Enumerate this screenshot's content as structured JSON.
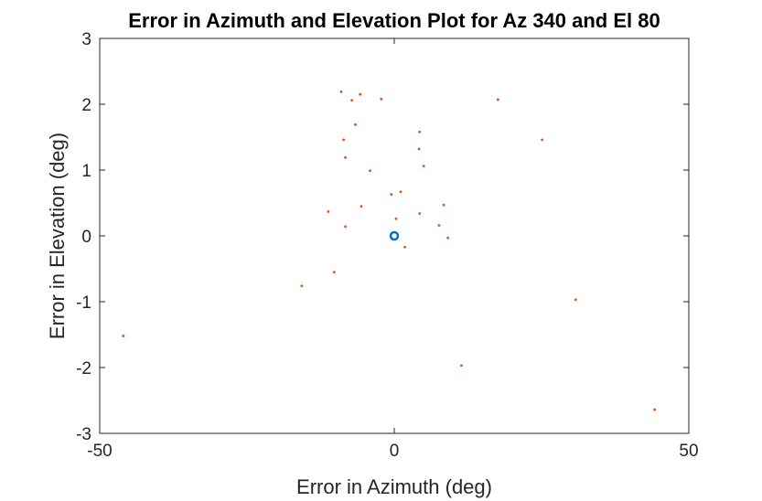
{
  "chart_data": {
    "type": "scatter",
    "title": "Error in Azimuth and Elevation Plot for Az 340 and El 80",
    "xlabel": "Error in Azimuth (deg)",
    "ylabel": "Error in Elevation (deg)",
    "xlim": [
      -50,
      50
    ],
    "ylim": [
      -3,
      3
    ],
    "xticks": [
      -50,
      0,
      50
    ],
    "xtick_labels": [
      "-50",
      "0",
      "50"
    ],
    "yticks": [
      -3,
      -2,
      -1,
      0,
      1,
      2,
      3
    ],
    "ytick_labels": [
      "-3",
      "-2",
      "-1",
      "0",
      "1",
      "2",
      "3"
    ],
    "grid": false,
    "box": true,
    "series": [
      {
        "marker": "circle-open",
        "color": "#0072BD",
        "points": [
          [
            0,
            0
          ]
        ]
      },
      {
        "marker": "dot",
        "color": "#D95319",
        "points": [
          [
            -9.0,
            2.19
          ],
          [
            -5.8,
            2.15
          ],
          [
            -7.2,
            2.06
          ],
          [
            -2.2,
            2.08
          ],
          [
            17.6,
            2.07
          ],
          [
            -6.6,
            1.69
          ],
          [
            4.3,
            1.58
          ],
          [
            -8.6,
            1.46
          ],
          [
            25.1,
            1.46
          ],
          [
            4.2,
            1.32
          ],
          [
            -8.3,
            1.19
          ],
          [
            5.0,
            1.06
          ],
          [
            -4.1,
            0.99
          ],
          [
            -0.5,
            0.63
          ],
          [
            1.1,
            0.67
          ],
          [
            8.4,
            0.47
          ],
          [
            -5.6,
            0.45
          ],
          [
            -11.2,
            0.37
          ],
          [
            4.3,
            0.34
          ],
          [
            0.3,
            0.26
          ],
          [
            -8.3,
            0.14
          ],
          [
            7.6,
            0.16
          ],
          [
            9.1,
            -0.03
          ],
          [
            1.8,
            -0.17
          ],
          [
            -10.2,
            -0.55
          ],
          [
            -15.7,
            -0.76
          ],
          [
            30.8,
            -0.97
          ],
          [
            -46.0,
            -1.52
          ],
          [
            11.4,
            -1.97
          ],
          [
            44.2,
            -2.64
          ]
        ]
      }
    ]
  }
}
